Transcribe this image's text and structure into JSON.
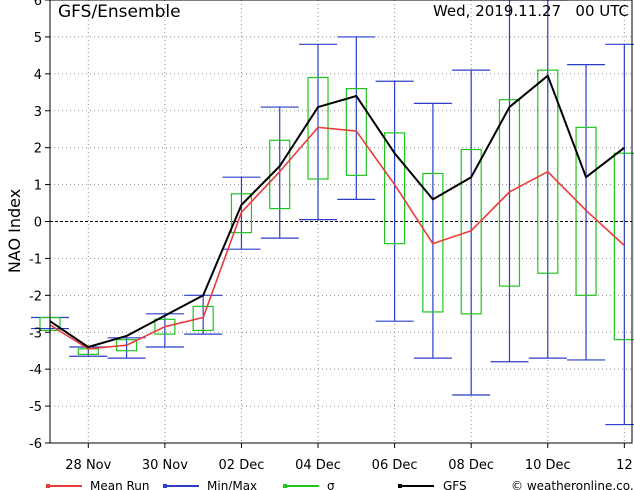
{
  "header": {
    "title": "GFS/Ensemble",
    "date": "Wed, 2019.11.27   00 UTC"
  },
  "legend": {
    "mean_run": "Mean Run",
    "min_max": "Min/Max",
    "sigma": "σ",
    "gfs": "GFS",
    "credit": "© weatheronline.co.uk"
  },
  "chart_data": {
    "type": "line",
    "title": "GFS/Ensemble",
    "ylabel": "NAO Index",
    "xlabel": "",
    "ylim": [
      -6,
      6
    ],
    "yticks": [
      -6,
      -5,
      -4,
      -3,
      -2,
      -1,
      0,
      1,
      2,
      3,
      4,
      5,
      6
    ],
    "x_tick_labels": [
      "28 Nov",
      "30 Nov",
      "02 Dec",
      "04 Dec",
      "06 Dec",
      "08 Dec",
      "10 Dec",
      "12"
    ],
    "x_tick_positions": [
      1,
      3,
      5,
      7,
      9,
      11,
      13,
      15
    ],
    "x_range": [
      0,
      15.2
    ],
    "grid": true,
    "colors": {
      "mean_run": "#e83c3c",
      "min_max": "#2b3fc8",
      "sigma": "#22c422",
      "gfs": "#000000",
      "grid": "#8f8f8f"
    },
    "x": [
      0,
      1,
      2,
      3,
      4,
      5,
      6,
      7,
      8,
      9,
      10,
      11,
      12,
      13,
      14,
      15
    ],
    "series": [
      {
        "name": "Mean Run",
        "values": [
          -2.8,
          -3.45,
          -3.35,
          -2.85,
          -2.6,
          0.25,
          1.35,
          2.55,
          2.45,
          1.0,
          -0.6,
          -0.25,
          0.8,
          1.35,
          0.3,
          -0.65
        ]
      },
      {
        "name": "GFS",
        "values": [
          -2.7,
          -3.4,
          -3.1,
          -2.55,
          -2.0,
          0.45,
          1.5,
          3.1,
          3.4,
          1.85,
          0.6,
          1.2,
          3.1,
          3.95,
          1.2,
          2.0
        ]
      }
    ],
    "sigma_boxes": [
      {
        "x": 0,
        "low": -2.95,
        "high": -2.6
      },
      {
        "x": 1,
        "low": -3.6,
        "high": -3.45
      },
      {
        "x": 2,
        "low": -3.5,
        "high": -3.2
      },
      {
        "x": 3,
        "low": -3.05,
        "high": -2.65
      },
      {
        "x": 4,
        "low": -2.95,
        "high": -2.3
      },
      {
        "x": 5,
        "low": -0.3,
        "high": 0.75
      },
      {
        "x": 6,
        "low": 0.35,
        "high": 2.2
      },
      {
        "x": 7,
        "low": 1.15,
        "high": 3.9
      },
      {
        "x": 8,
        "low": 1.25,
        "high": 3.6
      },
      {
        "x": 9,
        "low": -0.6,
        "high": 2.4
      },
      {
        "x": 10,
        "low": -2.45,
        "high": 1.3
      },
      {
        "x": 11,
        "low": -2.5,
        "high": 1.95
      },
      {
        "x": 12,
        "low": -1.75,
        "high": 3.3
      },
      {
        "x": 13,
        "low": -1.4,
        "high": 4.1
      },
      {
        "x": 14,
        "low": -2.0,
        "high": 2.55
      },
      {
        "x": 15,
        "low": -3.2,
        "high": 1.85
      }
    ],
    "minmax": [
      {
        "x": 0,
        "min": -2.9,
        "max": -2.6
      },
      {
        "x": 1,
        "min": -3.65,
        "max": -3.4
      },
      {
        "x": 2,
        "min": -3.7,
        "max": -3.15
      },
      {
        "x": 3,
        "min": -3.4,
        "max": -2.5
      },
      {
        "x": 4,
        "min": -3.05,
        "max": -2.0
      },
      {
        "x": 5,
        "min": -0.75,
        "max": 1.2
      },
      {
        "x": 6,
        "min": -0.45,
        "max": 3.1
      },
      {
        "x": 7,
        "min": 0.05,
        "max": 4.8
      },
      {
        "x": 8,
        "min": 0.6,
        "max": 5.0
      },
      {
        "x": 9,
        "min": -2.7,
        "max": 3.8
      },
      {
        "x": 10,
        "min": -3.7,
        "max": 3.2
      },
      {
        "x": 11,
        "min": -4.7,
        "max": 4.1
      },
      {
        "x": 12,
        "min": -3.8,
        "max": 6.0
      },
      {
        "x": 13,
        "min": -3.7,
        "max": 6.0
      },
      {
        "x": 14,
        "min": -3.75,
        "max": 4.25
      },
      {
        "x": 15,
        "min": -5.5,
        "max": 4.8
      }
    ]
  }
}
